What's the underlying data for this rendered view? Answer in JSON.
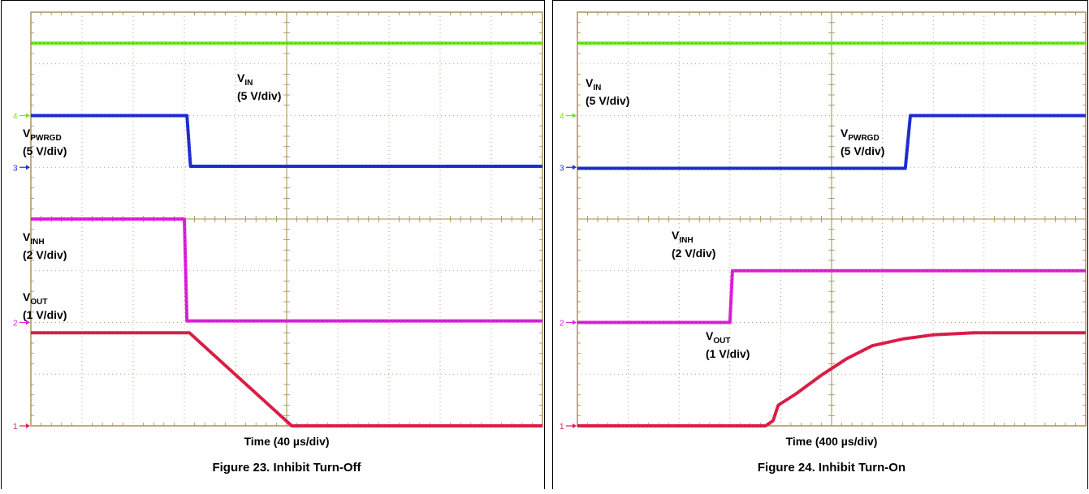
{
  "chart_data": [
    {
      "type": "line",
      "title": "Figure 23. Inhibit Turn-Off",
      "xlabel": "Time (40 µs/div)",
      "x_divisions": 10,
      "y_divisions": 8,
      "xlim": [
        0,
        10
      ],
      "ylim": [
        0,
        8
      ],
      "series": [
        {
          "name": "V_IN",
          "label_main": "V",
          "label_sub": "IN",
          "scale": "(5 V/div)",
          "color": "#6ee61e",
          "points": [
            [
              0,
              7.4
            ],
            [
              10,
              7.4
            ]
          ]
        },
        {
          "name": "V_PWRGD",
          "label_main": "V",
          "label_sub": "PWRGD",
          "scale": "(5 V/div)",
          "color": "#1f2fd6",
          "points": [
            [
              0,
              6.0
            ],
            [
              3.05,
              6.0
            ],
            [
              3.12,
              5.02
            ],
            [
              10,
              5.02
            ]
          ]
        },
        {
          "name": "V_INH",
          "label_main": "V",
          "label_sub": "INH",
          "scale": "(2 V/div)",
          "color": "#e020e0",
          "points": [
            [
              0,
              4.0
            ],
            [
              3.0,
              4.0
            ],
            [
              3.05,
              2.03
            ],
            [
              10,
              2.03
            ]
          ]
        },
        {
          "name": "V_OUT",
          "label_main": "V",
          "label_sub": "OUT",
          "scale": "(1 V/div)",
          "color": "#e0204a",
          "points": [
            [
              0,
              1.8
            ],
            [
              3.1,
              1.8
            ],
            [
              5.1,
              0.0
            ],
            [
              10,
              0.0
            ]
          ]
        }
      ],
      "channel_markers": [
        {
          "label": "4",
          "color": "#6ee61e",
          "y": 6.0
        },
        {
          "label": "3",
          "color": "#1f2fd6",
          "y": 5.0
        },
        {
          "label": "2",
          "color": "#e020e0",
          "y": 2.0
        },
        {
          "label": "1",
          "color": "#e0204a",
          "y": 0.0
        }
      ]
    },
    {
      "type": "line",
      "title": "Figure 24. Inhibit Turn-On",
      "xlabel": "Time (400 µs/div)",
      "x_divisions": 10,
      "y_divisions": 8,
      "xlim": [
        0,
        10
      ],
      "ylim": [
        0,
        8
      ],
      "series": [
        {
          "name": "V_IN",
          "label_main": "V",
          "label_sub": "IN",
          "scale": "(5 V/div)",
          "color": "#6ee61e",
          "points": [
            [
              0,
              7.4
            ],
            [
              10,
              7.4
            ]
          ]
        },
        {
          "name": "V_PWRGD",
          "label_main": "V",
          "label_sub": "PWRGD",
          "scale": "(5 V/div)",
          "color": "#1f2fd6",
          "points": [
            [
              0,
              4.98
            ],
            [
              6.45,
              4.98
            ],
            [
              6.55,
              6.0
            ],
            [
              10,
              6.0
            ]
          ]
        },
        {
          "name": "V_INH",
          "label_main": "V",
          "label_sub": "INH",
          "scale": "(2 V/div)",
          "color": "#e020e0",
          "points": [
            [
              0,
              2.0
            ],
            [
              3.0,
              2.0
            ],
            [
              3.05,
              3.0
            ],
            [
              10,
              3.0
            ]
          ]
        },
        {
          "name": "V_OUT",
          "label_main": "V",
          "label_sub": "OUT",
          "scale": "(1 V/div)",
          "color": "#e0204a",
          "points": [
            [
              0,
              0.0
            ],
            [
              3.7,
              0.0
            ],
            [
              3.85,
              0.1
            ],
            [
              3.95,
              0.4
            ],
            [
              4.3,
              0.62
            ],
            [
              4.8,
              0.98
            ],
            [
              5.3,
              1.3
            ],
            [
              5.8,
              1.55
            ],
            [
              6.4,
              1.68
            ],
            [
              7.0,
              1.76
            ],
            [
              7.8,
              1.8
            ],
            [
              10,
              1.8
            ]
          ]
        }
      ],
      "channel_markers": [
        {
          "label": "4",
          "color": "#6ee61e",
          "y": 6.0
        },
        {
          "label": "3",
          "color": "#1f2fd6",
          "y": 5.0
        },
        {
          "label": "2",
          "color": "#e020e0",
          "y": 2.0
        },
        {
          "label": "1",
          "color": "#e0204a",
          "y": 0.0
        }
      ]
    }
  ]
}
